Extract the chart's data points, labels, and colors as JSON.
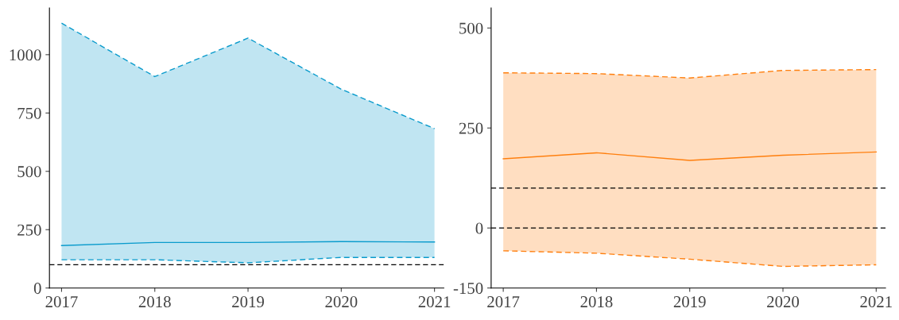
{
  "chart_data": [
    {
      "type": "line",
      "x": [
        2017,
        2018,
        2019,
        2020,
        2021
      ],
      "series": [
        {
          "color": "#0a9bcc",
          "values": [
            182,
            195,
            195,
            199,
            197
          ],
          "lower": [
            121,
            121,
            108,
            131,
            131
          ],
          "upper": [
            1135,
            906,
            1071,
            852,
            683
          ]
        },
        {
          "color": "#0a9bcc",
          "line_style": "dashed",
          "values": [
            121,
            121,
            108,
            131,
            131
          ]
        },
        {
          "color": "#0a9bcc",
          "line_style": "dashed",
          "values": [
            1135,
            906,
            1071,
            852,
            683
          ]
        }
      ],
      "xlim": [
        2016.87,
        2021.1
      ],
      "xticks": [
        2017,
        2018,
        2019,
        2020,
        2021
      ],
      "ylim": [
        0,
        1200
      ],
      "yticks": [
        0,
        250,
        500,
        750,
        1000
      ],
      "ref_lines": [
        {
          "axis": "y",
          "value": 100,
          "color": "#000000",
          "line_style": "dashed"
        }
      ],
      "grid": false,
      "legend": false
    },
    {
      "type": "line",
      "x": [
        2017,
        2018,
        2019,
        2020,
        2021
      ],
      "series": [
        {
          "color": "#ff7f0e",
          "values": [
            173,
            188,
            169,
            182,
            190
          ],
          "lower": [
            -57,
            -63,
            -78,
            -96,
            -92
          ],
          "upper": [
            388,
            386,
            375,
            394,
            396
          ]
        },
        {
          "color": "#ff7f0e",
          "line_style": "dashed",
          "values": [
            -57,
            -63,
            -78,
            -96,
            -92
          ]
        },
        {
          "color": "#ff7f0e",
          "line_style": "dashed",
          "values": [
            388,
            386,
            375,
            394,
            396
          ]
        }
      ],
      "xlim": [
        2016.87,
        2021.1
      ],
      "xticks": [
        2017,
        2018,
        2019,
        2020,
        2021
      ],
      "ylim": [
        -150,
        550
      ],
      "yticks": [
        -150,
        0,
        250,
        500
      ],
      "ref_lines": [
        {
          "axis": "y",
          "value": 100,
          "color": "#000000",
          "line_style": "dashed"
        },
        {
          "axis": "y",
          "value": 0,
          "color": "#000000",
          "line_style": "dashed"
        }
      ],
      "grid": false,
      "legend": false
    }
  ]
}
